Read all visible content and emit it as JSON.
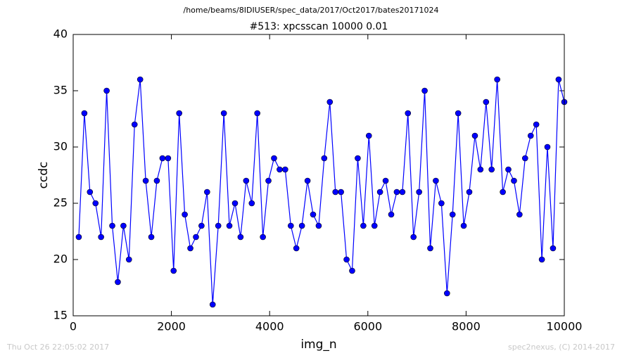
{
  "chart_data": {
    "type": "line",
    "suptitle": "/home/beams/8IDIUSER/spec_data/2017/Oct2017/bates20171024",
    "title": "#513: xpcsscan 10000 0.01",
    "xlabel": "img_n",
    "ylabel": "ccdc",
    "footer_left": "Thu Oct 26 22:05:02 2017",
    "footer_right": "spec2nexus, (C) 2014-2017",
    "x": [
      114,
      228,
      341,
      455,
      568,
      682,
      796,
      909,
      1023,
      1136,
      1250,
      1364,
      1477,
      1591,
      1704,
      1818,
      1932,
      2045,
      2159,
      2272,
      2386,
      2500,
      2613,
      2727,
      2840,
      2954,
      3068,
      3181,
      3295,
      3408,
      3522,
      3636,
      3749,
      3863,
      3976,
      4090,
      4204,
      4317,
      4431,
      4544,
      4658,
      4772,
      4885,
      4999,
      5112,
      5226,
      5340,
      5453,
      5567,
      5680,
      5794,
      5908,
      6021,
      6135,
      6248,
      6362,
      6476,
      6589,
      6703,
      6816,
      6930,
      7044,
      7157,
      7271,
      7384,
      7498,
      7612,
      7725,
      7839,
      7952,
      8066,
      8180,
      8293,
      8407,
      8520,
      8634,
      8748,
      8861,
      8975,
      9088,
      9202,
      9316,
      9429,
      9543,
      9656,
      9770,
      9884,
      10000
    ],
    "series": [
      {
        "name": "ccdc",
        "color": "#0000ff",
        "values": [
          22,
          33,
          26,
          25,
          22,
          35,
          23,
          18,
          23,
          20,
          32,
          36,
          27,
          22,
          27,
          29,
          29,
          19,
          33,
          24,
          21,
          22,
          23,
          26,
          16,
          23,
          33,
          23,
          25,
          22,
          27,
          25,
          33,
          22,
          27,
          29,
          28,
          28,
          23,
          21,
          23,
          27,
          24,
          23,
          29,
          34,
          26,
          26,
          20,
          19,
          29,
          23,
          31,
          23,
          26,
          27,
          24,
          26,
          26,
          33,
          22,
          26,
          35,
          21,
          27,
          25,
          17,
          24,
          33,
          23,
          26,
          31,
          28,
          34,
          28,
          36,
          26,
          28,
          27,
          24,
          29,
          31,
          32,
          20,
          30,
          21,
          36,
          34
        ]
      }
    ],
    "xlim": [
      0,
      10000
    ],
    "xticks": [
      0,
      2000,
      4000,
      6000,
      8000,
      10000
    ],
    "ylim": [
      15,
      40
    ],
    "yticks": [
      15,
      20,
      25,
      30,
      35,
      40
    ],
    "grid": false,
    "markers": true
  }
}
